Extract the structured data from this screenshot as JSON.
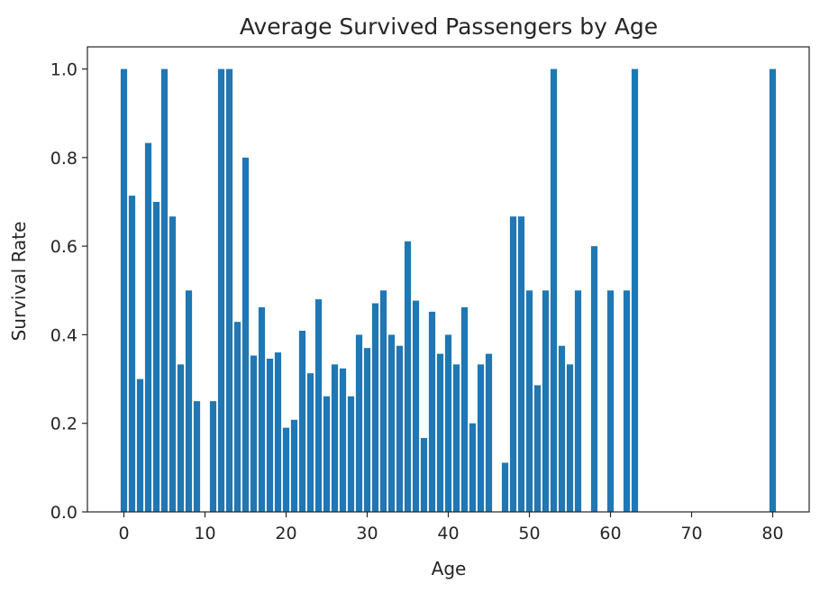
{
  "chart_data": {
    "type": "bar",
    "title": "Average Survived Passengers by Age",
    "xlabel": "Age",
    "ylabel": "Survival Rate",
    "xlim": [
      -4.5,
      84.5
    ],
    "ylim": [
      0,
      1.05
    ],
    "xticks": [
      0,
      10,
      20,
      30,
      40,
      50,
      60,
      70,
      80
    ],
    "xtick_labels": [
      "0",
      "10",
      "20",
      "30",
      "40",
      "50",
      "60",
      "70",
      "80"
    ],
    "yticks": [
      0.0,
      0.2,
      0.4,
      0.6,
      0.8,
      1.0
    ],
    "ytick_labels": [
      "0.0",
      "0.2",
      "0.4",
      "0.6",
      "0.8",
      "1.0"
    ],
    "bar_width": 0.8,
    "grid": false,
    "color": "#1f77b4",
    "x": [
      0,
      1,
      2,
      3,
      4,
      5,
      6,
      7,
      8,
      9,
      11,
      12,
      13,
      14,
      15,
      16,
      17,
      18,
      19,
      20,
      21,
      22,
      23,
      24,
      25,
      26,
      27,
      28,
      29,
      30,
      31,
      32,
      33,
      34,
      35,
      36,
      37,
      38,
      39,
      40,
      41,
      42,
      43,
      44,
      45,
      47,
      48,
      49,
      50,
      51,
      52,
      53,
      54,
      55,
      56,
      58,
      60,
      62,
      63,
      80
    ],
    "values": [
      1.0,
      0.714,
      0.3,
      0.833,
      0.7,
      1.0,
      0.667,
      0.333,
      0.5,
      0.25,
      0.25,
      1.0,
      1.0,
      0.429,
      0.8,
      0.353,
      0.462,
      0.346,
      0.36,
      0.19,
      0.208,
      0.409,
      0.313,
      0.48,
      0.261,
      0.333,
      0.324,
      0.261,
      0.4,
      0.37,
      0.471,
      0.5,
      0.4,
      0.375,
      0.611,
      0.477,
      0.167,
      0.452,
      0.357,
      0.4,
      0.333,
      0.462,
      0.2,
      0.333,
      0.357,
      0.111,
      0.667,
      0.667,
      0.5,
      0.286,
      0.5,
      1.0,
      0.375,
      0.333,
      0.5,
      0.6,
      0.5,
      0.5,
      1.0,
      1.0
    ]
  }
}
